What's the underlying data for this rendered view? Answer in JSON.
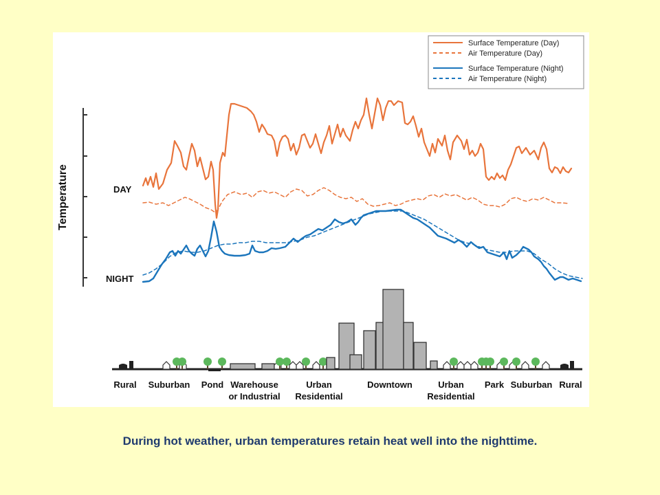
{
  "caption": "During hot weather, urban temperatures retain heat well into the nighttime.",
  "chart_data": {
    "type": "line",
    "title": "",
    "ylabel": "Temperature",
    "y_level_labels": [
      "DAY",
      "NIGHT"
    ],
    "legend": {
      "placement": "top-right",
      "entries": [
        "Surface Temperature (Day)",
        "Air Temperature  (Day)",
        "Surface Temperature (Night)",
        "Air Temperature (Night)"
      ]
    },
    "colors": {
      "day": "#e8743b",
      "night": "#1b75bc",
      "building": "#b3b3b3",
      "tree": "#5cb85c",
      "dark": "#222222"
    },
    "zones": [
      {
        "label": "Rural"
      },
      {
        "label": "Suburban"
      },
      {
        "label": "Pond"
      },
      {
        "label": "Warehouse\nor Industrial"
      },
      {
        "label": "Urban\nResidential"
      },
      {
        "label": "Downtown"
      },
      {
        "label": "Urban\nResidential"
      },
      {
        "label": "Park"
      },
      {
        "label": "Suburban"
      },
      {
        "label": "Rural"
      }
    ]
  }
}
